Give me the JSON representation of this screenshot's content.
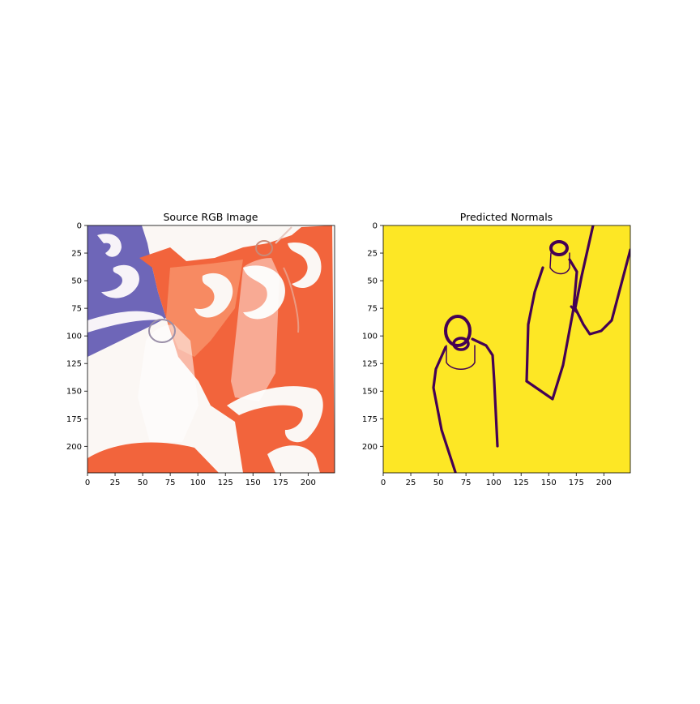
{
  "figure": {
    "panels": [
      {
        "id": "source",
        "title": "Source RGB Image",
        "xticks": [
          "0",
          "25",
          "50",
          "75",
          "100",
          "125",
          "150",
          "175",
          "200"
        ],
        "yticks": [
          "0",
          "25",
          "50",
          "75",
          "100",
          "125",
          "150",
          "175",
          "200"
        ]
      },
      {
        "id": "normals",
        "title": "Predicted Normals",
        "xticks": [
          "0",
          "25",
          "50",
          "75",
          "100",
          "125",
          "150",
          "175",
          "200"
        ],
        "yticks": [
          "0",
          "25",
          "50",
          "75",
          "100",
          "125",
          "150",
          "175",
          "200"
        ]
      }
    ],
    "axis_range": [
      0,
      224
    ],
    "tick_values": [
      0,
      25,
      50,
      75,
      100,
      125,
      150,
      175,
      200
    ],
    "colors": {
      "source_blue": "#6e66b8",
      "source_orange": "#f2643c",
      "source_white": "#fbf7f4",
      "normals_background": "#fde725",
      "normals_edge": "#440154"
    }
  }
}
